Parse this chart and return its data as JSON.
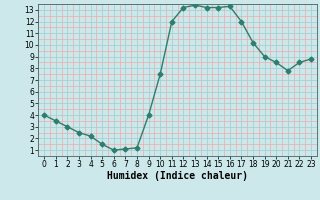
{
  "x": [
    0,
    1,
    2,
    3,
    4,
    5,
    6,
    7,
    8,
    9,
    10,
    11,
    12,
    13,
    14,
    15,
    16,
    17,
    18,
    19,
    20,
    21,
    22,
    23
  ],
  "y": [
    4.0,
    3.5,
    3.0,
    2.5,
    2.2,
    1.5,
    1.0,
    1.1,
    1.2,
    4.0,
    7.5,
    12.0,
    13.2,
    13.4,
    13.2,
    13.2,
    13.3,
    12.0,
    10.2,
    9.0,
    8.5,
    7.8,
    8.5,
    8.8
  ],
  "color": "#2e7d6e",
  "bg_color": "#cce8ea",
  "grid_color_major": "#aacfd2",
  "grid_color_minor": "#f0aaaa",
  "xlabel": "Humidex (Indice chaleur)",
  "ylim": [
    0.5,
    13.5
  ],
  "xlim": [
    -0.5,
    23.5
  ],
  "yticks": [
    1,
    2,
    3,
    4,
    5,
    6,
    7,
    8,
    9,
    10,
    11,
    12,
    13
  ],
  "xticks": [
    0,
    1,
    2,
    3,
    4,
    5,
    6,
    7,
    8,
    9,
    10,
    11,
    12,
    13,
    14,
    15,
    16,
    17,
    18,
    19,
    20,
    21,
    22,
    23
  ],
  "marker": "D",
  "markersize": 2.5,
  "linewidth": 1.0,
  "xlabel_fontsize": 7,
  "tick_fontsize": 5.5
}
